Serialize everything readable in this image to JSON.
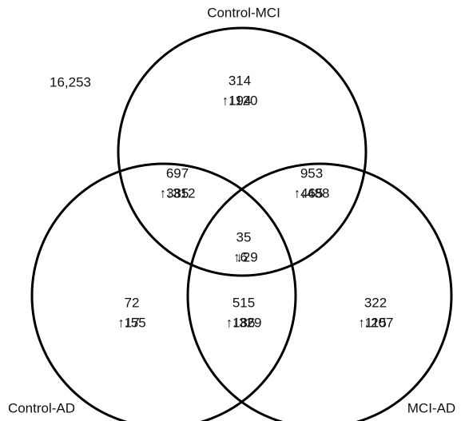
{
  "sets": [
    "Control-MCI",
    "Control-AD",
    "MCI-AD"
  ],
  "outside": "16,253",
  "regions": [
    {
      "total": "314",
      "up": "↑194",
      "down": "↓120"
    },
    {
      "total": "697",
      "up": "↑385",
      "down": "↓312"
    },
    {
      "total": "953",
      "up": "↑465",
      "down": "↓488"
    },
    {
      "total": "35",
      "up": "↑6",
      "down": "↓29"
    },
    {
      "total": "72",
      "up": "↑17",
      "down": "↓55"
    },
    {
      "total": "515",
      "up": "↑186",
      "down": "↓329"
    },
    {
      "total": "322",
      "up": "↑115",
      "down": "↓207"
    }
  ]
}
